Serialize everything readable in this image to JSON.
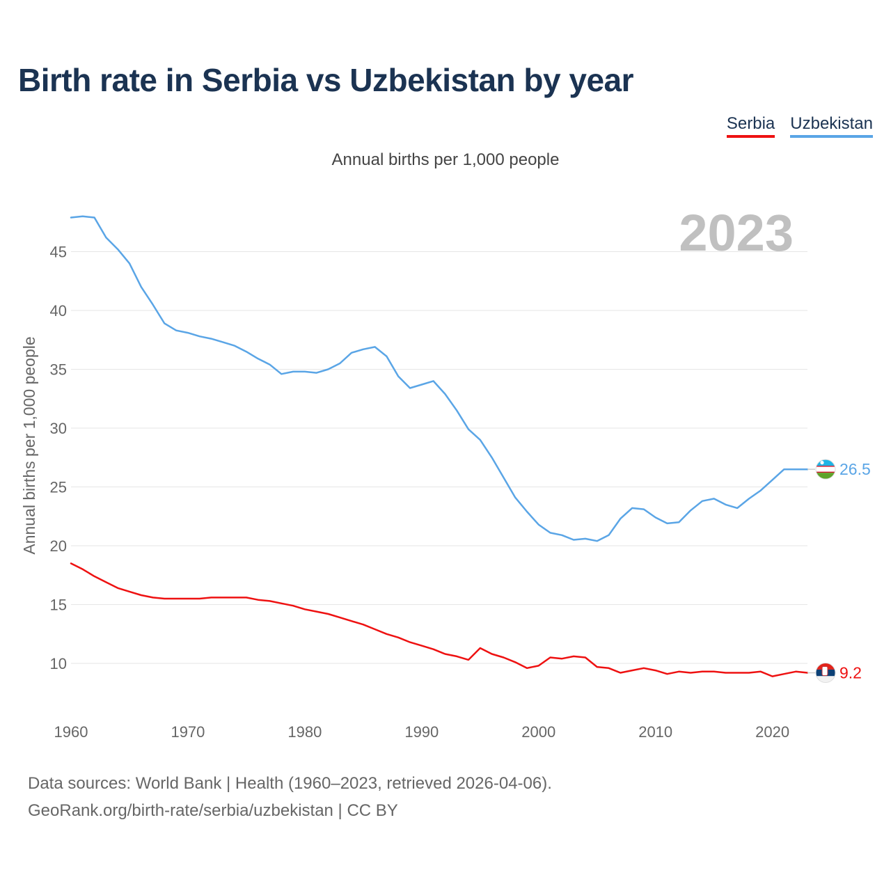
{
  "title": "Birth rate in Serbia vs Uzbekistan by year",
  "legend": {
    "serbia": "Serbia",
    "uzbekistan": "Uzbekistan"
  },
  "colors": {
    "serbia": "#ee1111",
    "uzbekistan": "#5aa5e6",
    "title": "#1b3352",
    "year": "#c0c0c0"
  },
  "footer": {
    "line1": "Data sources: World Bank | Health (1960–2023, retrieved 2026-04-06).",
    "line2": "GeoRank.org/birth-rate/serbia/uzbekistan | CC BY"
  },
  "chart_data": {
    "type": "line",
    "title": "Birth rate in Serbia vs Uzbekistan by year",
    "subtitle": "Annual births per 1,000 people",
    "ylabel": "Annual births per 1,000 people",
    "xlabel": "",
    "year_label": "2023",
    "xlim": [
      1960,
      2023
    ],
    "ylim": [
      6.5,
      49
    ],
    "xticks": [
      "1960",
      "1970",
      "1980",
      "1990",
      "2000",
      "2010",
      "2020"
    ],
    "yticks": [
      "10",
      "15",
      "20",
      "25",
      "30",
      "35",
      "40",
      "45"
    ],
    "grid": true,
    "legend_position": "top-right",
    "x": [
      1960,
      1961,
      1962,
      1963,
      1964,
      1965,
      1966,
      1967,
      1968,
      1969,
      1970,
      1971,
      1972,
      1973,
      1974,
      1975,
      1976,
      1977,
      1978,
      1979,
      1980,
      1981,
      1982,
      1983,
      1984,
      1985,
      1986,
      1987,
      1988,
      1989,
      1990,
      1991,
      1992,
      1993,
      1994,
      1995,
      1996,
      1997,
      1998,
      1999,
      2000,
      2001,
      2002,
      2003,
      2004,
      2005,
      2006,
      2007,
      2008,
      2009,
      2010,
      2011,
      2012,
      2013,
      2014,
      2015,
      2016,
      2017,
      2018,
      2019,
      2020,
      2021,
      2022,
      2023
    ],
    "series": [
      {
        "name": "Serbia",
        "end_label": "9.2",
        "values": [
          18.5,
          18.0,
          17.4,
          16.9,
          16.4,
          16.1,
          15.8,
          15.6,
          15.5,
          15.5,
          15.5,
          15.5,
          15.6,
          15.6,
          15.6,
          15.6,
          15.4,
          15.3,
          15.1,
          14.9,
          14.6,
          14.4,
          14.2,
          13.9,
          13.6,
          13.3,
          12.9,
          12.5,
          12.2,
          11.8,
          11.5,
          11.2,
          10.8,
          10.6,
          10.3,
          11.3,
          10.8,
          10.5,
          10.1,
          9.6,
          9.8,
          10.5,
          10.4,
          10.6,
          10.5,
          9.7,
          9.6,
          9.2,
          9.4,
          9.6,
          9.4,
          9.1,
          9.3,
          9.2,
          9.3,
          9.3,
          9.2,
          9.2,
          9.2,
          9.3,
          8.9,
          9.1,
          9.3,
          9.2
        ]
      },
      {
        "name": "Uzbekistan",
        "end_label": "26.5",
        "values": [
          47.9,
          48.0,
          47.9,
          46.2,
          45.2,
          44.0,
          42.0,
          40.5,
          38.9,
          38.3,
          38.1,
          37.8,
          37.6,
          37.3,
          37.0,
          36.5,
          35.9,
          35.4,
          34.6,
          34.8,
          34.8,
          34.7,
          35.0,
          35.5,
          36.4,
          36.7,
          36.9,
          36.1,
          34.4,
          33.4,
          33.7,
          34.0,
          32.9,
          31.5,
          29.9,
          29.0,
          27.5,
          25.8,
          24.1,
          22.9,
          21.8,
          21.1,
          20.9,
          20.5,
          20.6,
          20.4,
          20.9,
          22.3,
          23.2,
          23.1,
          22.4,
          21.9,
          22.0,
          23.0,
          23.8,
          24.0,
          23.5,
          23.2,
          24.0,
          24.7,
          25.6,
          26.5,
          26.5,
          26.5
        ]
      }
    ]
  }
}
